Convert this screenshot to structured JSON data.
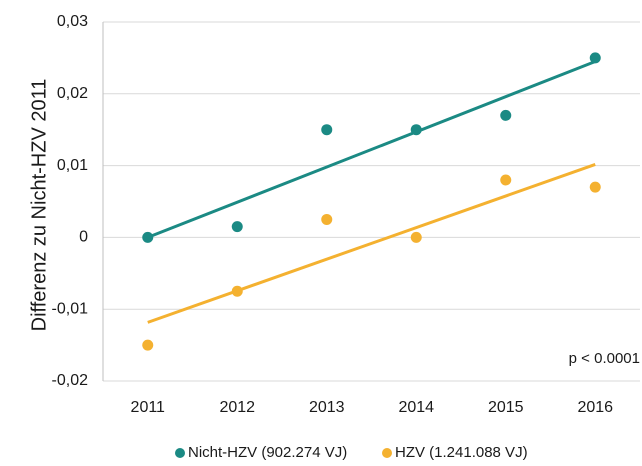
{
  "chart_data": {
    "type": "scatter",
    "ylabel": "Differenz zu Nicht-HZV 2011",
    "annotation": "p < 0.0001",
    "x": [
      2011,
      2012,
      2013,
      2014,
      2015,
      2016
    ],
    "xlim": [
      2010.5,
      2016.5
    ],
    "xticks": [
      2011,
      2012,
      2013,
      2014,
      2015,
      2016
    ],
    "ylim": [
      -0.02,
      0.03
    ],
    "yticks": [
      {
        "value": -0.02,
        "label": "-0,02"
      },
      {
        "value": -0.01,
        "label": "-0,01"
      },
      0,
      {
        "value": 0.01,
        "label": "0,01"
      },
      {
        "value": 0.02,
        "label": "0,02"
      },
      {
        "value": 0.03,
        "label": "0,03"
      }
    ],
    "grid": true,
    "trendline": true,
    "legend": "bottom",
    "series": [
      {
        "name": "Nicht-HZV (902.274 VJ)",
        "color": "#1b8a84",
        "values": [
          0,
          0.0015,
          0.015,
          0.015,
          0.017,
          0.025
        ]
      },
      {
        "name": "HZV (1.241.088 VJ)",
        "color": "#f4b130",
        "values": [
          -0.015,
          -0.0075,
          0.0025,
          0,
          0.008,
          0.007
        ]
      }
    ]
  }
}
